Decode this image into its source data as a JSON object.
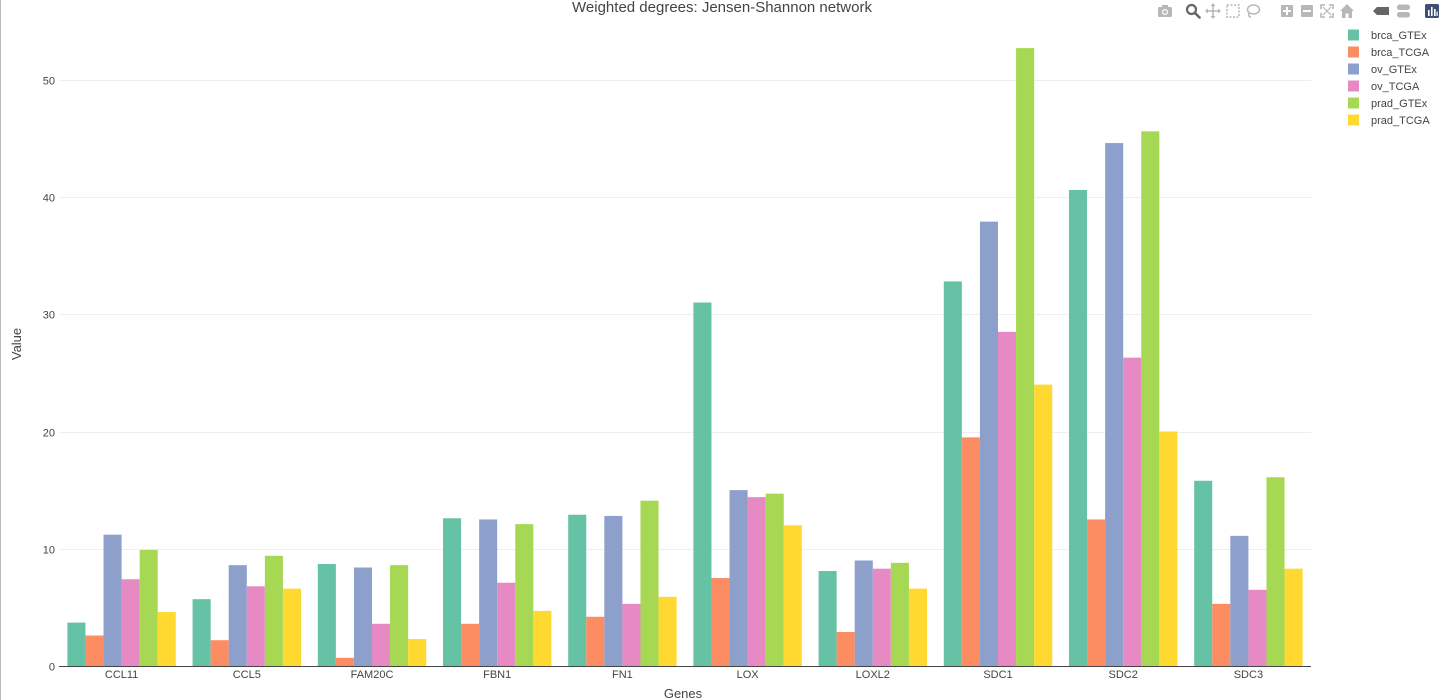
{
  "chart_data": {
    "type": "bar",
    "title": "Weighted degrees: Jensen-Shannon network",
    "xlabel": "Genes",
    "ylabel": "Value",
    "ylim": [
      0,
      54.5
    ],
    "yticks": [
      0,
      10,
      20,
      30,
      40,
      50
    ],
    "grid": true,
    "legend_position": "top-right",
    "categories": [
      "CCL11",
      "CCL5",
      "FAM20C",
      "FBN1",
      "FN1",
      "LOX",
      "LOXL2",
      "SDC1",
      "SDC2",
      "SDC3"
    ],
    "series": [
      {
        "name": "brca_GTEx",
        "color": "#66c2a5",
        "values": [
          3.7,
          5.7,
          8.7,
          12.6,
          12.9,
          31.0,
          8.1,
          32.8,
          40.6,
          15.8
        ]
      },
      {
        "name": "brca_TCGA",
        "color": "#fc8d62",
        "values": [
          2.6,
          2.2,
          0.7,
          3.6,
          4.2,
          7.5,
          2.9,
          19.5,
          12.5,
          5.3
        ]
      },
      {
        "name": "ov_GTEx",
        "color": "#8da0cb",
        "values": [
          11.2,
          8.6,
          8.4,
          12.5,
          12.8,
          15.0,
          9.0,
          37.9,
          44.6,
          11.1
        ]
      },
      {
        "name": "ov_TCGA",
        "color": "#e78ac3",
        "values": [
          7.4,
          6.8,
          3.6,
          7.1,
          5.3,
          14.4,
          8.3,
          28.5,
          26.3,
          6.5
        ]
      },
      {
        "name": "prad_GTEx",
        "color": "#a6d854",
        "values": [
          9.9,
          9.4,
          8.6,
          12.1,
          14.1,
          14.7,
          8.8,
          52.7,
          45.6,
          16.1
        ]
      },
      {
        "name": "prad_TCGA",
        "color": "#ffd92f",
        "values": [
          4.6,
          6.6,
          2.3,
          4.7,
          5.9,
          12.0,
          6.6,
          24.0,
          20.0,
          8.3
        ]
      }
    ]
  },
  "modebar": {
    "icons": [
      "camera-icon",
      "zoom-icon",
      "pan-icon",
      "box-select-icon",
      "lasso-select-icon",
      "zoom-in-icon",
      "zoom-out-icon",
      "autoscale-icon",
      "reset-axes-icon",
      "hover-closest-icon",
      "hover-compare-icon",
      "plotly-logo-icon"
    ],
    "icon_color": "#b7b7b7",
    "active_color": "#666666",
    "logo_color": "#3f4f75"
  }
}
